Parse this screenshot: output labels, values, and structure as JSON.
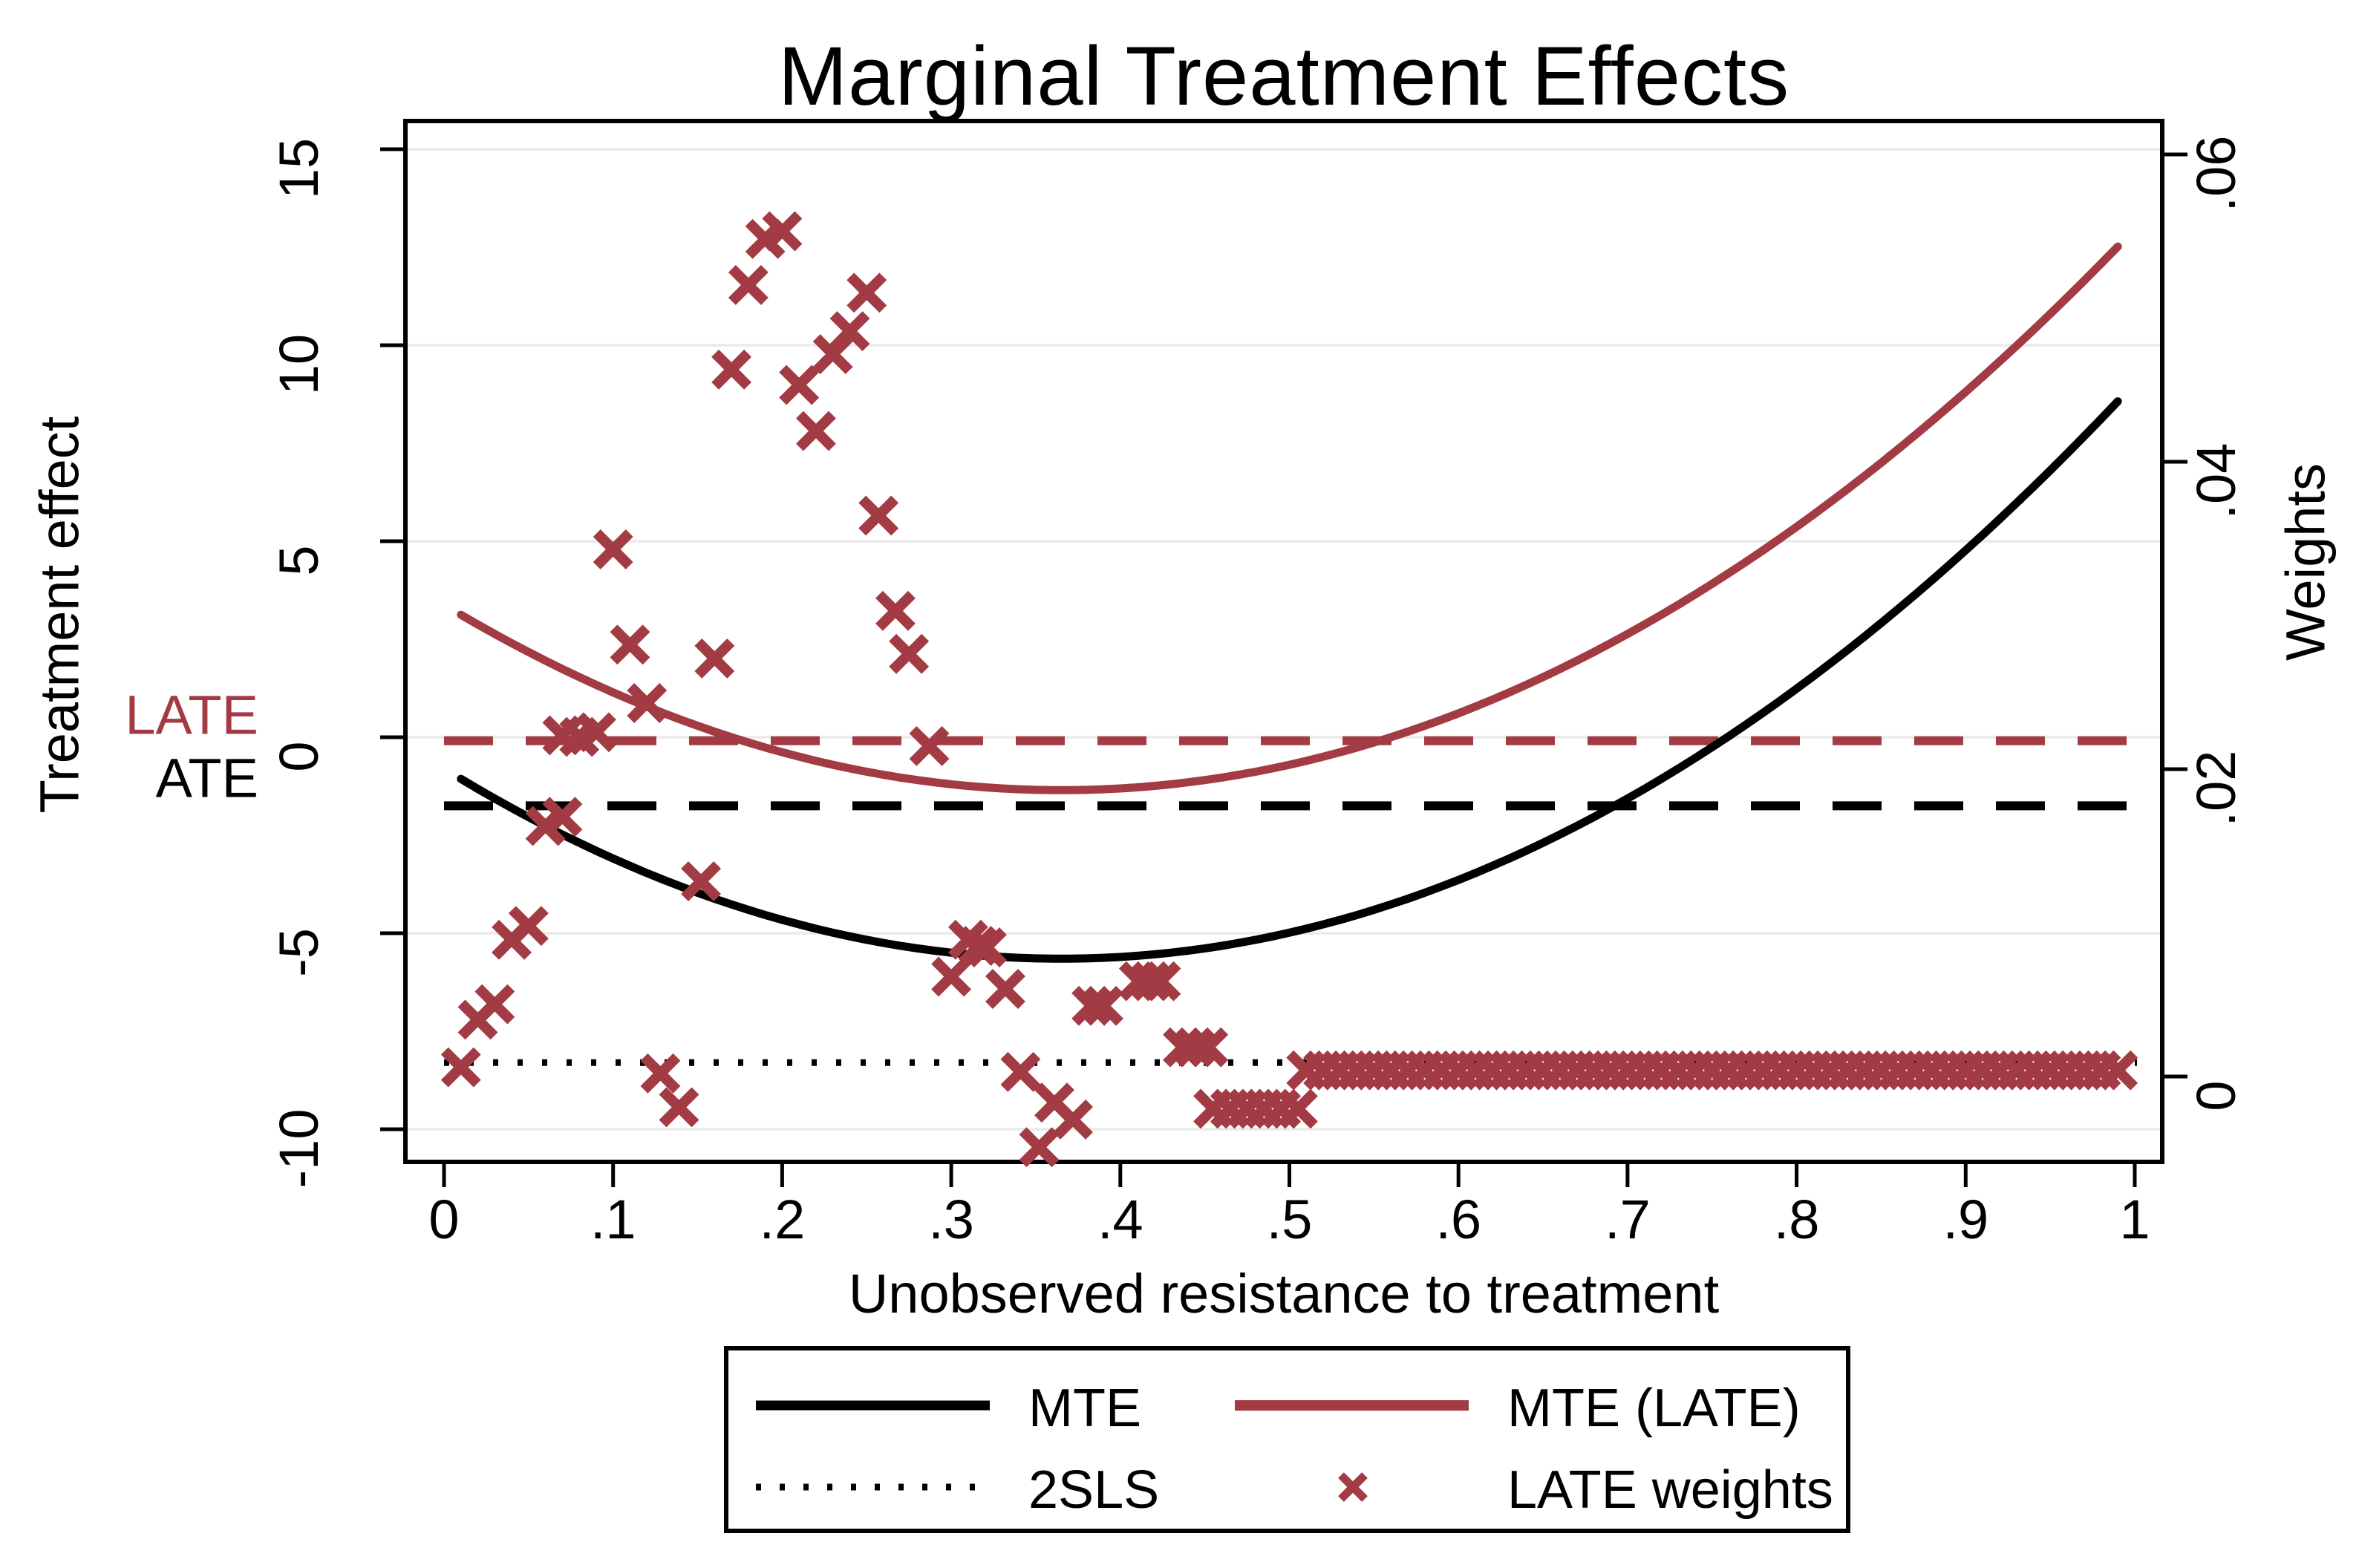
{
  "chart_data": {
    "type": "line+scatter",
    "title": "Marginal Treatment Effects",
    "xlabel": "Unobserved resistance to treatment",
    "ylabel_left": "Treatment effect",
    "ylabel_right": "Weights",
    "grid": "horizontal",
    "x_ticks": {
      "labels": [
        "0",
        ".1",
        ".2",
        ".3",
        ".4",
        ".5",
        ".6",
        ".7",
        ".8",
        ".9",
        "1"
      ],
      "values": [
        0,
        0.1,
        0.2,
        0.3,
        0.4,
        0.5,
        0.6,
        0.7,
        0.8,
        0.9,
        1
      ]
    },
    "y_left_ticks": {
      "labels": [
        "15",
        "10",
        "5",
        "0",
        "-5",
        "-10"
      ],
      "values": [
        15,
        10,
        5,
        0,
        -5,
        -10
      ]
    },
    "y_right_ticks": {
      "labels": [
        ".06",
        ".04",
        ".02",
        "0"
      ],
      "values": [
        0.06,
        0.04,
        0.02,
        0
      ]
    },
    "x_range": [
      -0.023,
      1.016
    ],
    "y_left_range": [
      -10.83,
      15.72
    ],
    "y_right_range": [
      -0.0056,
      0.0622
    ],
    "colors": {
      "mte": "#000000",
      "late_red": "#A33B44",
      "gridline": "#ECECEC",
      "frame": "#000000"
    },
    "annotations": {
      "late_label": "LATE",
      "ate_label": "ATE"
    },
    "reference_lines": [
      {
        "name": "LATE",
        "value": -0.09,
        "axis": "left",
        "style": "dashed",
        "color": "#A33B44"
      },
      {
        "name": "ATE",
        "value": -1.75,
        "axis": "left",
        "style": "dashed",
        "color": "#000000"
      },
      {
        "name": "2SLS",
        "value": -8.3,
        "axis": "left",
        "style": "dotted",
        "color": "#000000"
      }
    ],
    "curves": [
      {
        "name": "MTE",
        "axis": "left",
        "color": "#000000",
        "style": "solid",
        "quadratic": {
          "a": 36.4,
          "h": 0.365,
          "k": -5.65
        },
        "u_min": 0.01,
        "u_max": 0.99,
        "readings": {
          "left_end": -1.1,
          "minimum": -5.7,
          "right_end": 8.5
        }
      },
      {
        "name": "MTE (LATE)",
        "axis": "left",
        "color": "#A33B44",
        "style": "solid",
        "quadratic": {
          "a": 35.5,
          "h": 0.365,
          "k": -1.35
        },
        "u_min": 0.01,
        "u_max": 0.99,
        "readings": {
          "left_end": 3.0,
          "minimum": -1.35,
          "right_end": 12.5
        }
      }
    ],
    "late_weights": {
      "name": "LATE weights",
      "axis": "right",
      "marker": "x",
      "color": "#A33B44",
      "points": [
        [
          0.01,
          0.0006
        ],
        [
          0.02,
          0.0037
        ],
        [
          0.03,
          0.0047
        ],
        [
          0.04,
          0.0089
        ],
        [
          0.05,
          0.0098
        ],
        [
          0.06,
          0.0163
        ],
        [
          0.07,
          0.0169
        ],
        [
          0.07,
          0.0222
        ],
        [
          0.08,
          0.0221
        ],
        [
          0.09,
          0.0224
        ],
        [
          0.1,
          0.0343
        ],
        [
          0.11,
          0.0281
        ],
        [
          0.12,
          0.0243
        ],
        [
          0.128,
          0.0002
        ],
        [
          0.139,
          -0.002
        ],
        [
          0.152,
          0.0127
        ],
        [
          0.16,
          0.0272
        ],
        [
          0.17,
          0.046
        ],
        [
          0.18,
          0.0515
        ],
        [
          0.19,
          0.0545
        ],
        [
          0.2,
          0.055
        ],
        [
          0.21,
          0.045
        ],
        [
          0.22,
          0.042
        ],
        [
          0.23,
          0.047
        ],
        [
          0.24,
          0.0485
        ],
        [
          0.25,
          0.051
        ],
        [
          0.257,
          0.0365
        ],
        [
          0.267,
          0.0303
        ],
        [
          0.275,
          0.0275
        ],
        [
          0.287,
          0.0215
        ],
        [
          0.3,
          0.0065
        ],
        [
          0.31,
          0.0089
        ],
        [
          0.316,
          0.0085
        ],
        [
          0.321,
          0.0084
        ],
        [
          0.332,
          0.0057
        ],
        [
          0.341,
          0.0003
        ],
        [
          0.352,
          -0.0046
        ],
        [
          0.361,
          -0.0017
        ],
        [
          0.372,
          -0.0028
        ],
        [
          0.383,
          0.0046
        ],
        [
          0.39,
          0.0046
        ],
        [
          0.411,
          0.0062
        ],
        [
          0.418,
          0.0062
        ],
        [
          0.424,
          0.0062
        ],
        [
          0.437,
          0.0019
        ],
        [
          0.444,
          0.0019
        ],
        [
          0.452,
          0.0019
        ],
        [
          0.455,
          -0.0021
        ],
        [
          0.465,
          -0.0021
        ],
        [
          0.475,
          -0.0021
        ],
        [
          0.485,
          -0.0021
        ],
        [
          0.495,
          -0.0021
        ],
        [
          0.505,
          -0.0021
        ],
        [
          0.51,
          0.0004
        ],
        [
          0.52,
          0.0004
        ],
        [
          0.53,
          0.0004
        ],
        [
          0.54,
          0.0004
        ],
        [
          0.55,
          0.0004
        ],
        [
          0.56,
          0.0004
        ],
        [
          0.57,
          0.0004
        ],
        [
          0.58,
          0.0004
        ],
        [
          0.59,
          0.0004
        ],
        [
          0.6,
          0.0004
        ],
        [
          0.61,
          0.0004
        ],
        [
          0.62,
          0.0004
        ],
        [
          0.63,
          0.0004
        ],
        [
          0.64,
          0.0004
        ],
        [
          0.65,
          0.0004
        ],
        [
          0.66,
          0.0004
        ],
        [
          0.67,
          0.0004
        ],
        [
          0.68,
          0.0004
        ],
        [
          0.69,
          0.0004
        ],
        [
          0.7,
          0.0004
        ],
        [
          0.71,
          0.0004
        ],
        [
          0.72,
          0.0004
        ],
        [
          0.73,
          0.0004
        ],
        [
          0.74,
          0.0004
        ],
        [
          0.75,
          0.0004
        ],
        [
          0.76,
          0.0004
        ],
        [
          0.77,
          0.0004
        ],
        [
          0.78,
          0.0004
        ],
        [
          0.79,
          0.0004
        ],
        [
          0.8,
          0.0004
        ],
        [
          0.81,
          0.0004
        ],
        [
          0.82,
          0.0004
        ],
        [
          0.83,
          0.0004
        ],
        [
          0.84,
          0.0004
        ],
        [
          0.85,
          0.0004
        ],
        [
          0.86,
          0.0004
        ],
        [
          0.87,
          0.0004
        ],
        [
          0.88,
          0.0004
        ],
        [
          0.89,
          0.0004
        ],
        [
          0.9,
          0.0004
        ],
        [
          0.91,
          0.0004
        ],
        [
          0.92,
          0.0004
        ],
        [
          0.93,
          0.0004
        ],
        [
          0.94,
          0.0004
        ],
        [
          0.95,
          0.0004
        ],
        [
          0.96,
          0.0004
        ],
        [
          0.97,
          0.0004
        ],
        [
          0.98,
          0.0004
        ],
        [
          0.99,
          0.0004
        ]
      ]
    }
  },
  "legend": {
    "items": [
      {
        "label": "MTE",
        "sample": "solid-black-line"
      },
      {
        "label": "MTE (LATE)",
        "sample": "solid-red-line"
      },
      {
        "label": "2SLS",
        "sample": "dotted-black-line"
      },
      {
        "label": "LATE weights",
        "sample": "red-x-marker"
      }
    ]
  }
}
